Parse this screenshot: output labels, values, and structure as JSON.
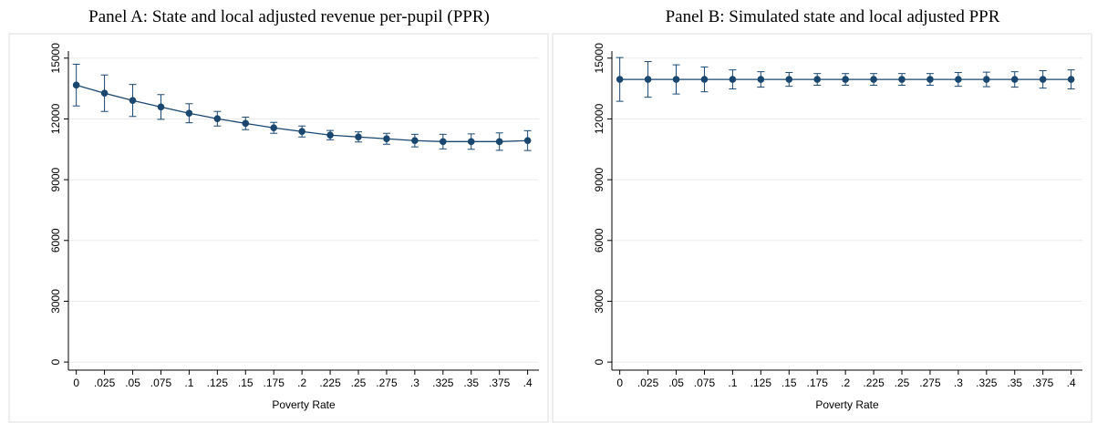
{
  "chart_data": [
    {
      "type": "line",
      "title": "Panel A: State and local adjusted revenue per-pupil (PPR)",
      "x_label": "Poverty Rate",
      "color": "#1a476f",
      "grid": true,
      "x": [
        0,
        0.025,
        0.05,
        0.075,
        0.1,
        0.125,
        0.15,
        0.175,
        0.2,
        0.225,
        0.25,
        0.275,
        0.3,
        0.325,
        0.35,
        0.375,
        0.4
      ],
      "values": [
        13670,
        13270,
        12910,
        12590,
        12280,
        12010,
        11780,
        11560,
        11380,
        11200,
        11110,
        11020,
        10930,
        10880,
        10880,
        10880,
        10930
      ],
      "errors": [
        1030,
        900,
        790,
        610,
        470,
        360,
        310,
        270,
        270,
        230,
        250,
        270,
        310,
        360,
        380,
        430,
        490
      ],
      "xlim": [
        -0.007,
        0.41
      ],
      "ylim": [
        -400,
        15350
      ],
      "xticks": [
        0,
        {
          "value": 0.025,
          "label": ".025"
        },
        {
          "value": 0.05,
          "label": ".05"
        },
        {
          "value": 0.075,
          "label": ".075"
        },
        {
          "value": 0.1,
          "label": ".1"
        },
        {
          "value": 0.125,
          "label": ".125"
        },
        {
          "value": 0.15,
          "label": ".15"
        },
        {
          "value": 0.175,
          "label": ".175"
        },
        {
          "value": 0.2,
          "label": ".2"
        },
        {
          "value": 0.225,
          "label": ".225"
        },
        {
          "value": 0.25,
          "label": ".25"
        },
        {
          "value": 0.275,
          "label": ".275"
        },
        {
          "value": 0.3,
          "label": ".3"
        },
        {
          "value": 0.325,
          "label": ".325"
        },
        {
          "value": 0.35,
          "label": ".35"
        },
        {
          "value": 0.375,
          "label": ".375"
        },
        {
          "value": 0.4,
          "label": ".4"
        }
      ],
      "yticks": [
        0,
        3000,
        6000,
        9000,
        12000,
        15000
      ]
    },
    {
      "type": "line",
      "title": "Panel B: Simulated state and local adjusted PPR",
      "x_label": "Poverty Rate",
      "color": "#1a476f",
      "grid": true,
      "x": [
        0,
        0.025,
        0.05,
        0.075,
        0.1,
        0.125,
        0.15,
        0.175,
        0.2,
        0.225,
        0.25,
        0.275,
        0.3,
        0.325,
        0.35,
        0.375,
        0.4
      ],
      "values": [
        13950,
        13950,
        13950,
        13950,
        13950,
        13950,
        13950,
        13950,
        13950,
        13950,
        13950,
        13950,
        13950,
        13950,
        13950,
        13950,
        13950
      ],
      "errors": [
        1080,
        880,
        720,
        610,
        470,
        380,
        340,
        290,
        290,
        290,
        290,
        290,
        340,
        360,
        380,
        430,
        470
      ],
      "xlim": [
        -0.007,
        0.41
      ],
      "ylim": [
        -400,
        15350
      ],
      "xticks": [
        0,
        {
          "value": 0.025,
          "label": ".025"
        },
        {
          "value": 0.05,
          "label": ".05"
        },
        {
          "value": 0.075,
          "label": ".075"
        },
        {
          "value": 0.1,
          "label": ".1"
        },
        {
          "value": 0.125,
          "label": ".125"
        },
        {
          "value": 0.15,
          "label": ".15"
        },
        {
          "value": 0.175,
          "label": ".175"
        },
        {
          "value": 0.2,
          "label": ".2"
        },
        {
          "value": 0.225,
          "label": ".225"
        },
        {
          "value": 0.25,
          "label": ".25"
        },
        {
          "value": 0.275,
          "label": ".275"
        },
        {
          "value": 0.3,
          "label": ".3"
        },
        {
          "value": 0.325,
          "label": ".325"
        },
        {
          "value": 0.35,
          "label": ".35"
        },
        {
          "value": 0.375,
          "label": ".375"
        },
        {
          "value": 0.4,
          "label": ".4"
        }
      ],
      "yticks": [
        0,
        3000,
        6000,
        9000,
        12000,
        15000
      ]
    }
  ]
}
